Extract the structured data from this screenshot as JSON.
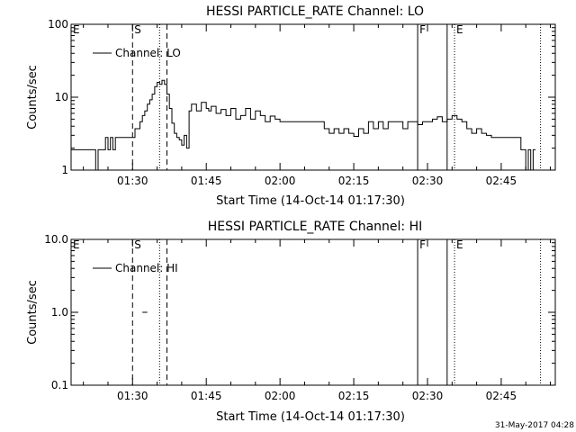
{
  "chart_data": [
    {
      "type": "line",
      "title": "HESSI PARTICLE_RATE Channel: LO",
      "xlabel": "Start Time (14-Oct-14 01:17:30)",
      "ylabel": "Counts/sec",
      "yscale": "log",
      "ylim": [
        1,
        100
      ],
      "y_tick_labels": [
        "1",
        "10",
        "100"
      ],
      "xlim": [
        "01:17:30",
        "02:56:00"
      ],
      "x_tick_labels": [
        "01:30",
        "01:45",
        "02:00",
        "02:15",
        "02:30",
        "02:45"
      ],
      "grid": false,
      "legend": "top-left",
      "series": [
        {
          "name": "Channel: LO",
          "color": "#000000",
          "x": [
            "01:17:30",
            "01:22:00",
            "01:22:30",
            "01:23:00",
            "01:24:00",
            "01:24:30",
            "01:25:00",
            "01:25:30",
            "01:26:00",
            "01:26:30",
            "01:27:00",
            "01:27:30",
            "01:28:00",
            "01:28:30",
            "01:29:00",
            "01:29:30",
            "01:30:00",
            "01:30:30",
            "01:31:00",
            "01:31:30",
            "01:32:00",
            "01:32:30",
            "01:33:00",
            "01:33:30",
            "01:34:00",
            "01:34:30",
            "01:35:00",
            "01:35:30",
            "01:36:00",
            "01:36:30",
            "01:37:00",
            "01:37:30",
            "01:38:00",
            "01:38:30",
            "01:39:00",
            "01:39:30",
            "01:40:00",
            "01:40:30",
            "01:41:00",
            "01:41:30",
            "01:42:00",
            "01:43:00",
            "01:44:00",
            "01:45:00",
            "01:45:30",
            "01:46:00",
            "01:47:00",
            "01:48:00",
            "01:49:00",
            "01:50:00",
            "01:51:00",
            "01:52:00",
            "01:53:00",
            "01:54:00",
            "01:55:00",
            "01:56:00",
            "01:57:00",
            "01:58:00",
            "01:59:00",
            "02:00:00",
            "02:01:00",
            "02:02:00",
            "02:03:00",
            "02:04:00",
            "02:05:00",
            "02:06:00",
            "02:07:00",
            "02:08:00",
            "02:09:00",
            "02:10:00",
            "02:11:00",
            "02:12:00",
            "02:13:00",
            "02:14:00",
            "02:15:00",
            "02:16:00",
            "02:17:00",
            "02:18:00",
            "02:19:00",
            "02:20:00",
            "02:21:00",
            "02:22:00",
            "02:23:00",
            "02:24:00",
            "02:25:00",
            "02:26:00",
            "02:27:00",
            "02:28:00",
            "02:29:00",
            "02:30:00",
            "02:31:00",
            "02:32:00",
            "02:33:00",
            "02:34:00",
            "02:35:00",
            "02:36:00",
            "02:37:00",
            "02:38:00",
            "02:39:00",
            "02:40:00",
            "02:41:00",
            "02:42:00",
            "02:43:00",
            "02:44:00",
            "02:45:00",
            "02:46:00",
            "02:47:00",
            "02:48:00",
            "02:49:00",
            "02:49:30",
            "02:50:00",
            "02:50:30",
            "02:51:00",
            "02:51:30",
            "02:52:00"
          ],
          "values": [
            1.9,
            1.9,
            1.0,
            1.9,
            1.9,
            2.8,
            1.9,
            2.8,
            1.9,
            2.8,
            2.8,
            2.8,
            2.8,
            2.8,
            2.8,
            2.8,
            2.8,
            3.7,
            3.7,
            4.6,
            5.6,
            6.5,
            8.0,
            9.2,
            11,
            14,
            16,
            15,
            17,
            15,
            11,
            7.0,
            4.4,
            3.2,
            2.8,
            2.6,
            2.2,
            3.0,
            2.0,
            6.5,
            8.0,
            6.5,
            8.5,
            7.0,
            6.5,
            7.5,
            6.0,
            6.8,
            5.6,
            7.0,
            5.0,
            5.6,
            7.0,
            5.0,
            6.5,
            5.6,
            4.6,
            5.5,
            5.0,
            4.6,
            4.6,
            4.6,
            4.6,
            4.6,
            4.6,
            4.6,
            4.6,
            4.6,
            3.7,
            3.2,
            3.7,
            3.2,
            3.7,
            3.2,
            2.9,
            3.7,
            3.2,
            4.6,
            3.7,
            4.6,
            3.7,
            4.6,
            4.6,
            4.6,
            3.7,
            4.6,
            4.6,
            4.2,
            4.6,
            4.6,
            5.0,
            5.4,
            4.6,
            5.0,
            5.6,
            5.0,
            4.6,
            3.7,
            3.2,
            3.7,
            3.2,
            3.0,
            2.8,
            2.8,
            2.8,
            2.8,
            2.8,
            2.8,
            1.9,
            1.9,
            1.0,
            1.9,
            1.0,
            1.9,
            1.9
          ]
        }
      ]
    },
    {
      "type": "line",
      "title": "HESSI PARTICLE_RATE Channel: HI",
      "xlabel": "Start Time (14-Oct-14 01:17:30)",
      "ylabel": "Counts/sec",
      "yscale": "log",
      "ylim": [
        0.1,
        10
      ],
      "y_tick_labels": [
        "0.1",
        "1.0",
        "10.0"
      ],
      "xlim": [
        "01:17:30",
        "02:56:00"
      ],
      "x_tick_labels": [
        "01:30",
        "01:45",
        "02:00",
        "02:15",
        "02:30",
        "02:45"
      ],
      "grid": false,
      "legend": "top-left",
      "series": [
        {
          "name": "Channel: HI",
          "color": "#000000",
          "x": [
            "01:32:00",
            "01:33:00"
          ],
          "values": [
            1.0,
            1.0
          ]
        }
      ]
    }
  ],
  "markers": [
    {
      "label": "E",
      "time": "01:17:30",
      "style": "label"
    },
    {
      "label": "S",
      "time": "01:30:00",
      "style": "dashed"
    },
    {
      "label": "",
      "time": "01:35:30",
      "style": "dotted"
    },
    {
      "label": "",
      "time": "01:37:00",
      "style": "dashed"
    },
    {
      "label": "F",
      "time": "02:28:00",
      "style": "solid"
    },
    {
      "label": "",
      "time": "02:34:00",
      "style": "solid"
    },
    {
      "label": "E",
      "time": "02:35:30",
      "style": "dotted"
    },
    {
      "label": "",
      "time": "02:53:00",
      "style": "dotted"
    }
  ],
  "footer": {
    "timestamp": "31-May-2017 04:28"
  }
}
